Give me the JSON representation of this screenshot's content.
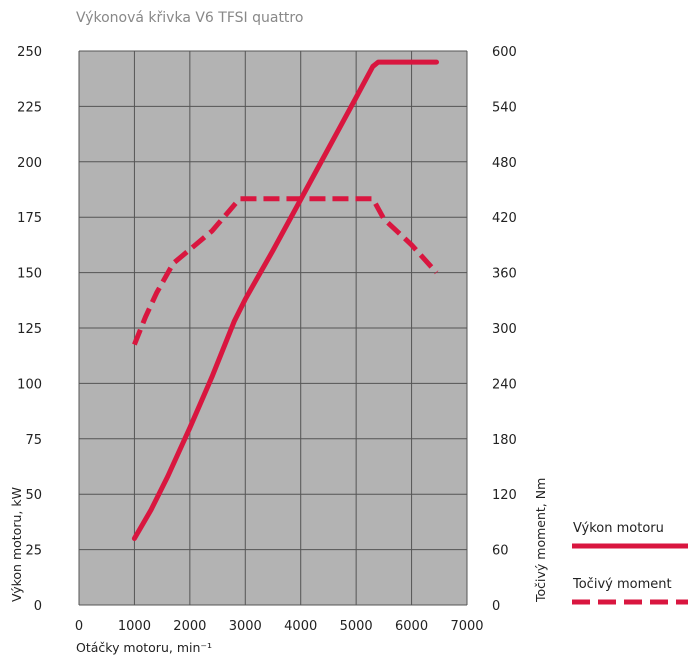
{
  "chart_data": {
    "type": "line",
    "title": "Výkonová křivka V6 TFSI quattro",
    "xlabel": "Otáčky motoru, min⁻¹",
    "ylabel_left": "Výkon motoru, kW",
    "ylabel_right": "Točivý moment, Nm",
    "xlim": [
      0,
      7000
    ],
    "ylim_left": [
      0,
      250
    ],
    "ylim_right": [
      0,
      600
    ],
    "x_ticks": [
      "0",
      "1000",
      "2000",
      "3000",
      "4000",
      "5000",
      "6000",
      "7000"
    ],
    "y_left_ticks": [
      "0",
      "25",
      "50",
      "75",
      "100",
      "125",
      "150",
      "175",
      "200",
      "225",
      "250"
    ],
    "y_right_ticks": [
      "0",
      "60",
      "120",
      "180",
      "240",
      "300",
      "360",
      "420",
      "480",
      "540",
      "600"
    ],
    "grid": true,
    "plot_background": "#b3b3b3",
    "legend_placement": "right",
    "series": [
      {
        "name": "Výkon motoru",
        "axis": "left",
        "style": "solid",
        "color": "#d9163f",
        "x": [
          1000,
          1300,
          1600,
          2000,
          2400,
          2800,
          3000,
          3500,
          4000,
          4500,
          5000,
          5300,
          5400,
          6450
        ],
        "y": [
          30,
          43,
          58,
          80,
          103,
          128,
          138,
          160,
          183,
          206,
          229,
          243,
          245,
          245
        ]
      },
      {
        "name": "Točivý moment",
        "axis": "right",
        "style": "dashed",
        "color": "#d9163f",
        "x": [
          1000,
          1200,
          1400,
          1700,
          2000,
          2400,
          2900,
          3500,
          4000,
          4500,
          5000,
          5300,
          5500,
          6000,
          6450
        ],
        "y": [
          282,
          312,
          338,
          370,
          385,
          405,
          440,
          440,
          440,
          440,
          440,
          440,
          418,
          390,
          360
        ]
      }
    ]
  }
}
